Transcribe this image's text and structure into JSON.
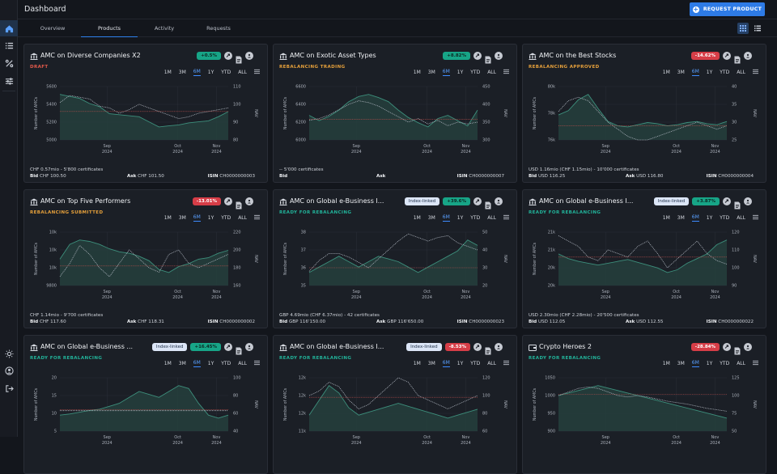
{
  "app": {
    "title": "Dashboard",
    "request_button": "REQUEST PRODUCT"
  },
  "tabs": [
    {
      "label": "Overview"
    },
    {
      "label": "Products"
    },
    {
      "label": "Activity"
    },
    {
      "label": "Requests"
    }
  ],
  "active_tab": "Products",
  "periods": [
    "1M",
    "3M",
    "6M",
    "1Y",
    "YTD",
    "ALL"
  ],
  "active_period": "6M",
  "labels": {
    "bid": "Bid",
    "ask": "Ask",
    "isin": "ISIN",
    "left_axis": "Number of AMCs",
    "right_axis": "NAV"
  },
  "colors": {
    "accent": "#2e7be6",
    "positive": "#17a587",
    "negative": "#d63d47",
    "draft": "#e55a4b",
    "trading": "#e7a13b",
    "approved": "#e7a13b",
    "submitted": "#e7a13b",
    "ready": "#22b39a",
    "area": "#2a4a45",
    "nav_line": "#a9b0bb"
  },
  "cards": [
    {
      "name": "AMC on Diverse Companies X2",
      "status": "DRAFT",
      "status_color": "#e55a4b",
      "change": "+0.5%",
      "change_type": "pos",
      "index_linked": false,
      "icon": "bank-icon",
      "info": "CHF 0.57mio - 5'800 certificates",
      "bid": "CHF 100.50",
      "ask": "CHF 101.50",
      "isin": "CH0000000003",
      "chart_data": {
        "type": "area",
        "x_ticks": [
          "Sep",
          "Oct",
          "Nov"
        ],
        "x_ticks_sub": [
          "2024",
          "2024",
          "2024"
        ],
        "y_left": [
          "5600",
          "5400",
          "5200",
          "5000"
        ],
        "y_right": [
          "110",
          "100",
          "90",
          "80"
        ],
        "amcs": [
          5520,
          5500,
          5480,
          5430,
          5400,
          5330,
          5320,
          5310,
          5300,
          5250,
          5200,
          5210,
          5220,
          5240,
          5250,
          5260,
          5300,
          5350
        ],
        "nav": [
          101,
          105,
          104,
          103,
          99,
          98,
          95,
          97,
          100,
          98,
          96,
          94,
          92,
          93,
          95,
          96,
          97,
          98
        ],
        "ref": 96
      }
    },
    {
      "name": "AMC on Exotic Asset Types",
      "status": "REBALANCING TRADING",
      "status_color": "#e7a13b",
      "change": "+8.82%",
      "change_type": "pos",
      "index_linked": false,
      "icon": "bank-icon",
      "info": "-- 5'000 certificates",
      "bid": "",
      "ask": "",
      "isin": "CH0000000007",
      "chart_data": {
        "type": "area",
        "x_ticks": [
          "Sep",
          "Oct",
          "Nov"
        ],
        "x_ticks_sub": [
          "2024",
          "2024",
          "2024"
        ],
        "y_left": [
          "6600",
          "6400",
          "6200",
          "6000"
        ],
        "y_right": [
          "450",
          "400",
          "350",
          "300"
        ],
        "amcs": [
          6250,
          6200,
          6240,
          6300,
          6380,
          6430,
          6450,
          6420,
          6380,
          6300,
          6230,
          6180,
          6140,
          6220,
          6250,
          6200,
          6150,
          6300
        ],
        "nav": [
          355,
          360,
          370,
          385,
          400,
          410,
          405,
          395,
          380,
          365,
          350,
          360,
          345,
          355,
          340,
          350,
          345,
          350
        ],
        "ref": 358
      }
    },
    {
      "name": "AMC on the Best Stocks",
      "status": "REBALANCING APPROVED",
      "status_color": "#e7a13b",
      "change": "-14.62%",
      "change_type": "neg",
      "index_linked": false,
      "icon": "bank-icon",
      "info": "USD 1.16mio (CHF 1.15mio) - 10'000 certificates",
      "bid": "USD 116.25",
      "ask": "USD 116.80",
      "isin": "CH0000000004",
      "chart_data": {
        "type": "area",
        "x_ticks": [
          "Sep",
          "Oct",
          "Nov"
        ],
        "x_ticks_sub": [
          "2024",
          "2024",
          "2024"
        ],
        "y_left": [
          "80k",
          "78k",
          "76k"
        ],
        "y_right": [
          "40",
          "35",
          "30",
          "25"
        ],
        "amcs": [
          77600,
          78000,
          79000,
          79500,
          78200,
          77000,
          76600,
          76500,
          76700,
          76900,
          76800,
          76600,
          76700,
          76900,
          77000,
          76800,
          76700,
          77000
        ],
        "nav": [
          33,
          36,
          37,
          36,
          33,
          30,
          28,
          26,
          25,
          25,
          26,
          27,
          28,
          29,
          30,
          29,
          28,
          29
        ],
        "ref": 29
      }
    },
    {
      "name": "AMC on Top Five Performers",
      "status": "REBALANCING SUBMITTED",
      "status_color": "#e7a13b",
      "change": "-13.01%",
      "change_type": "neg",
      "index_linked": false,
      "icon": "bank-icon",
      "info": "CHF 1.14mio - 9'700 certificates",
      "bid": "CHF 117.60",
      "ask": "CHF 118.31",
      "isin": "CH0000000002",
      "chart_data": {
        "type": "area",
        "x_ticks": [
          "Sep",
          "Oct",
          "Nov"
        ],
        "x_ticks_sub": [
          "2024",
          "2024",
          "2024"
        ],
        "y_left": [
          "10k",
          "10k",
          "10k",
          "9800"
        ],
        "y_right": [
          "220",
          "200",
          "180",
          "160"
        ],
        "amcs": [
          9950,
          10050,
          10080,
          10070,
          10050,
          10020,
          10000,
          9990,
          9970,
          9940,
          9880,
          9860,
          9900,
          9920,
          9950,
          9960,
          9990,
          10010
        ],
        "nav": [
          170,
          185,
          205,
          195,
          180,
          170,
          185,
          200,
          190,
          180,
          175,
          195,
          200,
          185,
          180,
          185,
          190,
          195
        ],
        "ref": 182
      }
    },
    {
      "name": "AMC on Global e-Business I...",
      "status": "READY FOR REBALANCING",
      "status_color": "#22b39a",
      "change": "+39.6%",
      "change_type": "pos",
      "index_linked": true,
      "index_label": "Index-linked",
      "icon": "bank-icon",
      "info": "GBP 4.69mio (CHF 6.37mio) - 42 certificates",
      "bid": "GBP 116'150.00",
      "ask": "GBP 116'650.00",
      "isin": "CH0000000023",
      "chart_data": {
        "type": "area",
        "x_ticks": [
          "Sep",
          "Oct",
          "Nov"
        ],
        "x_ticks_sub": [
          "2024",
          "2024",
          "2024"
        ],
        "y_left": [
          "38",
          "37",
          "36",
          "35"
        ],
        "y_right": [
          "50",
          "40",
          "30",
          "20"
        ],
        "amcs": [
          36,
          36.1,
          36.2,
          36.3,
          36.2,
          36.1,
          36.2,
          36.3,
          36.25,
          36.2,
          36.1,
          36.0,
          36.1,
          36.2,
          36.3,
          36.4,
          36.6,
          36.5
        ],
        "nav": [
          28,
          34,
          38,
          38,
          36,
          33,
          30,
          35,
          40,
          45,
          49,
          47,
          45,
          47,
          48,
          44,
          42,
          40
        ],
        "ref": 30
      }
    },
    {
      "name": "AMC on Global e-Business I...",
      "status": "READY FOR REBALANCING",
      "status_color": "#22b39a",
      "change": "+3.87%",
      "change_type": "pos",
      "index_linked": true,
      "index_label": "Index-linked",
      "icon": "bank-icon",
      "info": "USD 2.30mio (CHF 2.28mio) - 20'500 certificates",
      "bid": "USD 112.05",
      "ask": "USD 112.55",
      "isin": "CH0000000022",
      "chart_data": {
        "type": "area",
        "x_ticks": [
          "Sep",
          "Oct",
          "Nov"
        ],
        "x_ticks_sub": [
          "2024",
          "2024",
          "2024"
        ],
        "y_left": [
          "21k",
          "21k",
          "20k",
          "20k"
        ],
        "y_right": [
          "120",
          "110",
          "100",
          "90"
        ],
        "amcs": [
          20500,
          20450,
          20420,
          20400,
          20380,
          20400,
          20420,
          20440,
          20410,
          20380,
          20350,
          20300,
          20330,
          20400,
          20450,
          20500,
          20600,
          20650
        ],
        "nav": [
          118,
          115,
          112,
          106,
          104,
          110,
          108,
          106,
          112,
          115,
          108,
          100,
          105,
          110,
          115,
          108,
          104,
          102
        ],
        "ref": 106
      }
    },
    {
      "name": "AMC on Global e-Business ...",
      "status": "READY FOR REBALANCING",
      "status_color": "#22b39a",
      "change": "+16.45%",
      "change_type": "pos",
      "index_linked": true,
      "index_label": "Index-linked",
      "icon": "bank-icon",
      "info": "",
      "bid": "",
      "ask": "",
      "isin": "",
      "chart_data": {
        "type": "area",
        "x_ticks": [
          "Sep",
          "Oct",
          "Nov"
        ],
        "x_ticks_sub": [
          "2024",
          "2024",
          "2024"
        ],
        "y_left": [
          "20",
          "15",
          "10",
          "5"
        ],
        "y_right": [
          "100",
          "80",
          "60",
          "40"
        ],
        "amcs": [
          9,
          9.2,
          9.5,
          9.8,
          10,
          10.5,
          11,
          12,
          13,
          12.5,
          12,
          13,
          14,
          13.5,
          11,
          9,
          8.5,
          9
        ],
        "nav": [
          63,
          63,
          63,
          63,
          63,
          63,
          63,
          63,
          63,
          63,
          63,
          63,
          63,
          63,
          63,
          63,
          63,
          63
        ],
        "ref": 64
      }
    },
    {
      "name": "AMC on Global e-Business I...",
      "status": "READY FOR REBALANCING",
      "status_color": "#22b39a",
      "change": "-8.53%",
      "change_type": "neg",
      "index_linked": true,
      "index_label": "Index-linked",
      "icon": "bank-icon",
      "info": "",
      "bid": "",
      "ask": "",
      "isin": "",
      "chart_data": {
        "type": "area",
        "x_ticks": [
          "Sep",
          "Oct",
          "Nov"
        ],
        "x_ticks_sub": [
          "2024",
          "2024",
          "2024"
        ],
        "y_left": [
          "12k",
          "12k",
          "12k",
          "11k"
        ],
        "y_right": [
          "120",
          "100",
          "80",
          "60"
        ],
        "amcs": [
          11900,
          12000,
          12100,
          12050,
          11950,
          11900,
          11920,
          11940,
          11960,
          11980,
          11960,
          11940,
          11920,
          11900,
          11880,
          11900,
          11920,
          11940
        ],
        "nav": [
          100,
          105,
          115,
          110,
          95,
          85,
          90,
          100,
          110,
          120,
          115,
          100,
          95,
          90,
          85,
          90,
          95,
          100
        ],
        "ref": 98
      }
    },
    {
      "name": "Crypto Heroes 2",
      "status": "READY FOR REBALANCING",
      "status_color": "#22b39a",
      "change": "-28.84%",
      "change_type": "neg",
      "index_linked": false,
      "icon": "wallet-icon",
      "info": "",
      "bid": "",
      "ask": "",
      "isin": "",
      "chart_data": {
        "type": "area",
        "x_ticks": [
          "Sep",
          "Oct",
          "Nov"
        ],
        "x_ticks_sub": [
          "2024",
          "2024",
          "2024"
        ],
        "y_left": [
          "1050",
          "1000",
          "950",
          "900"
        ],
        "y_right": [
          "125",
          "100",
          "75",
          "50"
        ],
        "amcs": [
          1000,
          1005,
          1010,
          1015,
          1020,
          1015,
          1010,
          1005,
          1000,
          995,
          990,
          985,
          980,
          975,
          970,
          965,
          960,
          955
        ],
        "nav": [
          100,
          105,
          110,
          112,
          110,
          105,
          100,
          98,
          100,
          98,
          95,
          92,
          90,
          88,
          85,
          82,
          80,
          78
        ],
        "ref": 102
      }
    }
  ]
}
